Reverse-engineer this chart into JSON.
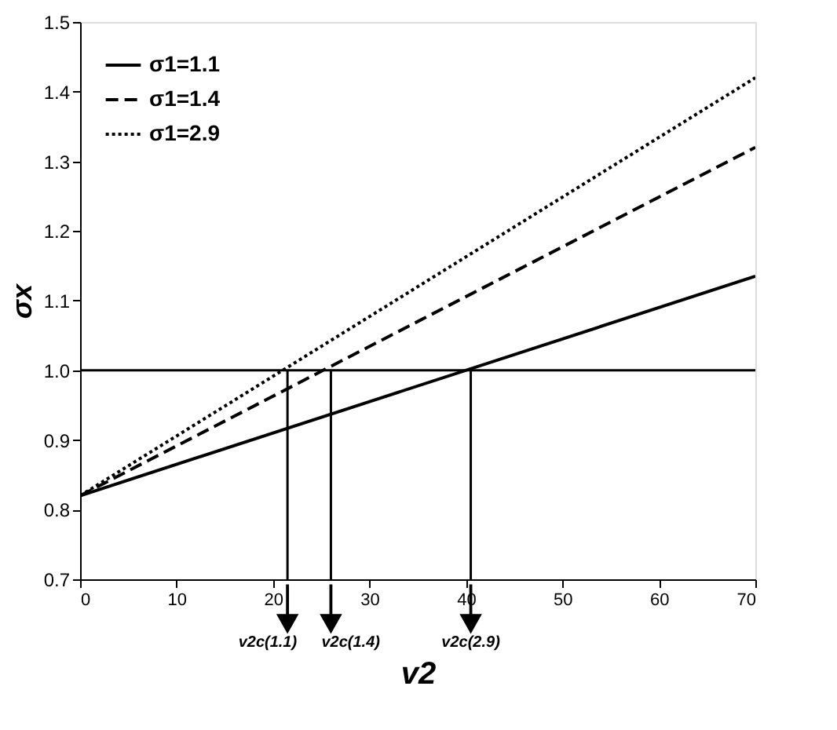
{
  "chart_data": {
    "type": "line",
    "xlabel": "v2",
    "ylabel": "σx",
    "series": [
      {
        "name": "σ1=1.1",
        "color": "#000000",
        "line_style": "solid",
        "x": [
          0,
          70
        ],
        "values": [
          0.82,
          1.135
        ]
      },
      {
        "name": "σ1=1.4",
        "color": "#000000",
        "line_style": "dashed",
        "x": [
          0,
          70
        ],
        "values": [
          0.82,
          1.32
        ]
      },
      {
        "name": "σ1=2.9",
        "color": "#000000",
        "line_style": "dotted",
        "x": [
          0,
          70
        ],
        "values": [
          0.82,
          1.42
        ]
      },
      {
        "type": "line",
        "color": "#000000",
        "line_style": "solid",
        "x": [
          21.5,
          21.5
        ],
        "values": [
          1.0,
          0.7
        ]
      },
      {
        "type": "line",
        "color": "#000000",
        "line_style": "solid",
        "x": [
          26,
          26
        ],
        "values": [
          1.0,
          0.7
        ]
      },
      {
        "type": "line",
        "color": "#000000",
        "line_style": "solid",
        "x": [
          40.5,
          40.5
        ],
        "values": [
          1.0,
          0.7
        ]
      }
    ],
    "xlim": [
      0,
      70
    ],
    "xticks": [
      0,
      10,
      20,
      30,
      40,
      50,
      60,
      70
    ],
    "ylim": [
      0.7,
      1.5
    ],
    "yticks": [
      0.7,
      0.8,
      0.9,
      {
        "value": 1.0,
        "label": "1.0"
      },
      1.1,
      1.2,
      1.3,
      1.4,
      1.5
    ],
    "ref_lines": [
      {
        "axis": "y",
        "value": 1.0,
        "color": "#000000",
        "line_style": "solid"
      }
    ],
    "annotations": [
      "v2c(1.1)",
      "v2c(1.4)",
      "v2c(2.9)"
    ],
    "grid": false,
    "legend": "top left",
    "marker": "none"
  }
}
